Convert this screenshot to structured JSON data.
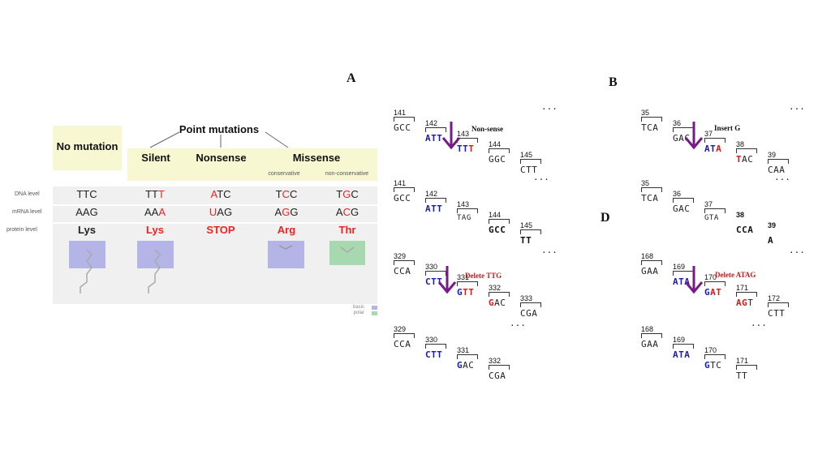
{
  "table": {
    "top_header": "Point mutations",
    "no_mutation": "No mutation",
    "silent": "Silent",
    "nonsense": "Nonsense",
    "missense": "Missense",
    "conservative": "conservative",
    "non_conservative": "non-conservative",
    "row_labels": [
      "DNA level",
      "mRNA level",
      "protein level"
    ],
    "columns": [
      {
        "dna": [
          "TTC",
          "",
          ""
        ],
        "mrna": [
          "AAG",
          "",
          ""
        ],
        "protein": "Lys"
      },
      {
        "dna": [
          "TT",
          "T",
          ""
        ],
        "mrna": [
          "AA",
          "A",
          ""
        ],
        "protein": "Lys"
      },
      {
        "dna": [
          "",
          "A",
          "TC"
        ],
        "mrna": [
          "",
          "U",
          "AG"
        ],
        "protein": "STOP"
      },
      {
        "dna": [
          "T",
          "C",
          "C"
        ],
        "mrna": [
          "A",
          "G",
          "G"
        ],
        "protein": "Arg"
      },
      {
        "dna": [
          "T",
          "G",
          "C"
        ],
        "mrna": [
          "A",
          "C",
          "G"
        ],
        "protein": "Thr"
      }
    ],
    "legend": [
      "basic",
      "polar"
    ],
    "colors": {
      "basic": "#b4b4e6",
      "polar": "#a8d8b0",
      "mutation": "#e22222"
    }
  },
  "panels": {
    "A": {
      "letter": "A",
      "before_nums": [
        "141",
        "142",
        "143",
        "144",
        "145"
      ],
      "after_nums": [
        "141",
        "142",
        "143",
        "144",
        "145"
      ],
      "operation": "Non-sense",
      "dots": "..."
    },
    "B": {
      "letter": "B",
      "before_nums": [
        "35",
        "36",
        "37",
        "38",
        "39"
      ],
      "after_nums": [
        "35",
        "36",
        "37",
        "38",
        "39"
      ],
      "operation": "Insert G",
      "dots": "..."
    },
    "C": {
      "before_nums": [
        "329",
        "330",
        "331",
        "332",
        "333"
      ],
      "after_nums": [
        "329",
        "330",
        "331",
        "332"
      ],
      "operation": "Delete TTG",
      "dots": "..."
    },
    "D": {
      "letter": "D",
      "before_nums": [
        "168",
        "169",
        "170",
        "171",
        "172"
      ],
      "after_nums": [
        "168",
        "169",
        "170",
        "171"
      ],
      "operation": "Delete ATAG",
      "dots": "..."
    }
  }
}
